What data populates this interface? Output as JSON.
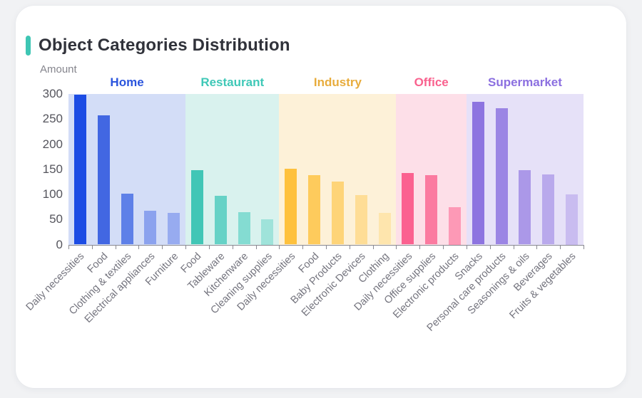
{
  "card": {
    "accent_color": "#3ec6b4"
  },
  "chart_data": {
    "type": "bar",
    "title": "Object Categories Distribution",
    "ylabel": "Amount",
    "xlabel": "",
    "ylim": [
      0,
      300
    ],
    "yticks": [
      300,
      250,
      200,
      150,
      100,
      50,
      0
    ],
    "grid": false,
    "legend_position": "top-inline-group-labels",
    "groups": [
      {
        "name": "Home",
        "label_color": "#2b55dd",
        "band_color": "#d3ddf7",
        "bars": [
          {
            "category": "Daily necessities",
            "value": 298,
            "color": "#1c4ce4"
          },
          {
            "category": "Food",
            "value": 258,
            "color": "#4267e2"
          },
          {
            "category": "Clothing & textiles",
            "value": 102,
            "color": "#5e80e8"
          },
          {
            "category": "Electrical appliances",
            "value": 68,
            "color": "#8ba2ee"
          },
          {
            "category": "Furniture",
            "value": 63,
            "color": "#97abf0"
          }
        ]
      },
      {
        "name": "Restaurant",
        "label_color": "#3fc8b7",
        "band_color": "#d9f2ee",
        "bars": [
          {
            "category": "Food",
            "value": 148,
            "color": "#41c6b6"
          },
          {
            "category": "Tableware",
            "value": 97,
            "color": "#66d2c6"
          },
          {
            "category": "Kitchenware",
            "value": 64,
            "color": "#84dcd2"
          },
          {
            "category": "Cleaning supplies",
            "value": 50,
            "color": "#9fe3da"
          }
        ]
      },
      {
        "name": "Industry",
        "label_color": "#e8ac3c",
        "band_color": "#fdf1d8",
        "bars": [
          {
            "category": "Daily necessities",
            "value": 151,
            "color": "#fec13d"
          },
          {
            "category": "Food",
            "value": 139,
            "color": "#fecb5c"
          },
          {
            "category": "Baby Products",
            "value": 126,
            "color": "#fed478"
          },
          {
            "category": "Electronic Devices",
            "value": 99,
            "color": "#fedd96"
          },
          {
            "category": "Clothing",
            "value": 63,
            "color": "#fee5ad"
          }
        ]
      },
      {
        "name": "Office",
        "label_color": "#f9618e",
        "band_color": "#fddfe8",
        "bars": [
          {
            "category": "Daily necessities",
            "value": 142,
            "color": "#fb6190"
          },
          {
            "category": "Office supplies",
            "value": 139,
            "color": "#fb7aa0"
          },
          {
            "category": "Electronic products",
            "value": 75,
            "color": "#fd99b6"
          }
        ]
      },
      {
        "name": "Supermarket",
        "label_color": "#8b6fe0",
        "band_color": "#e6e1f8",
        "bars": [
          {
            "category": "Snacks",
            "value": 285,
            "color": "#8d74e0"
          },
          {
            "category": "Personal care products",
            "value": 272,
            "color": "#9b85e4"
          },
          {
            "category": "Seasonings & oils",
            "value": 148,
            "color": "#ab98e8"
          },
          {
            "category": "Beverages",
            "value": 140,
            "color": "#b9a9ec"
          },
          {
            "category": "Fruits & vegetables",
            "value": 100,
            "color": "#c9bcf0"
          }
        ]
      }
    ]
  }
}
